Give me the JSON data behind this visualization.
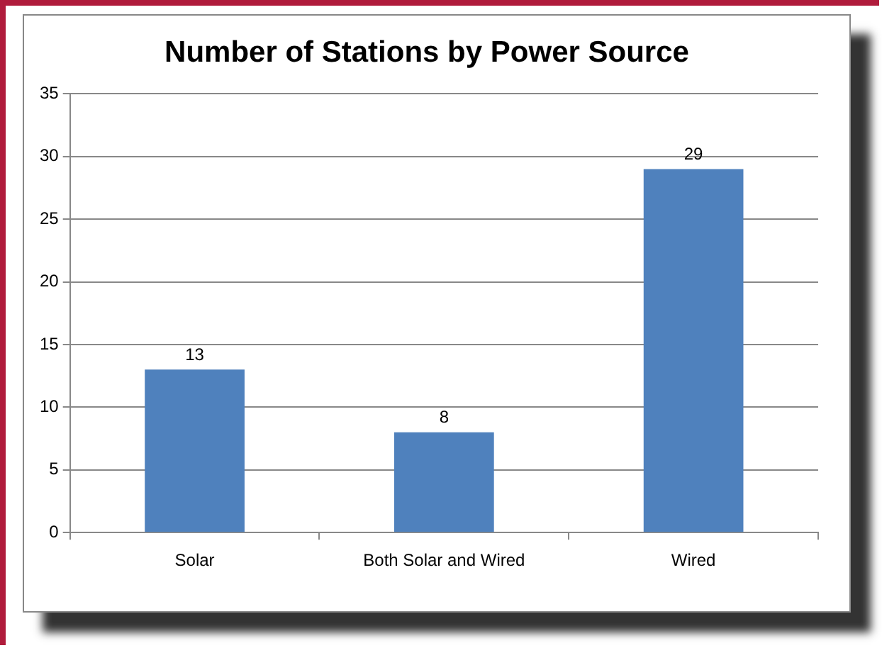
{
  "chart_data": {
    "type": "bar",
    "title": "Number of Stations by Power Source",
    "categories": [
      "Solar",
      "Both Solar and Wired",
      "Wired"
    ],
    "values": [
      13,
      8,
      29
    ],
    "color": "#4f81bd",
    "ylim": [
      0,
      35
    ],
    "yticks": [
      0,
      5,
      10,
      15,
      20,
      25,
      30,
      35
    ],
    "grid": "y",
    "data_labels": true
  }
}
